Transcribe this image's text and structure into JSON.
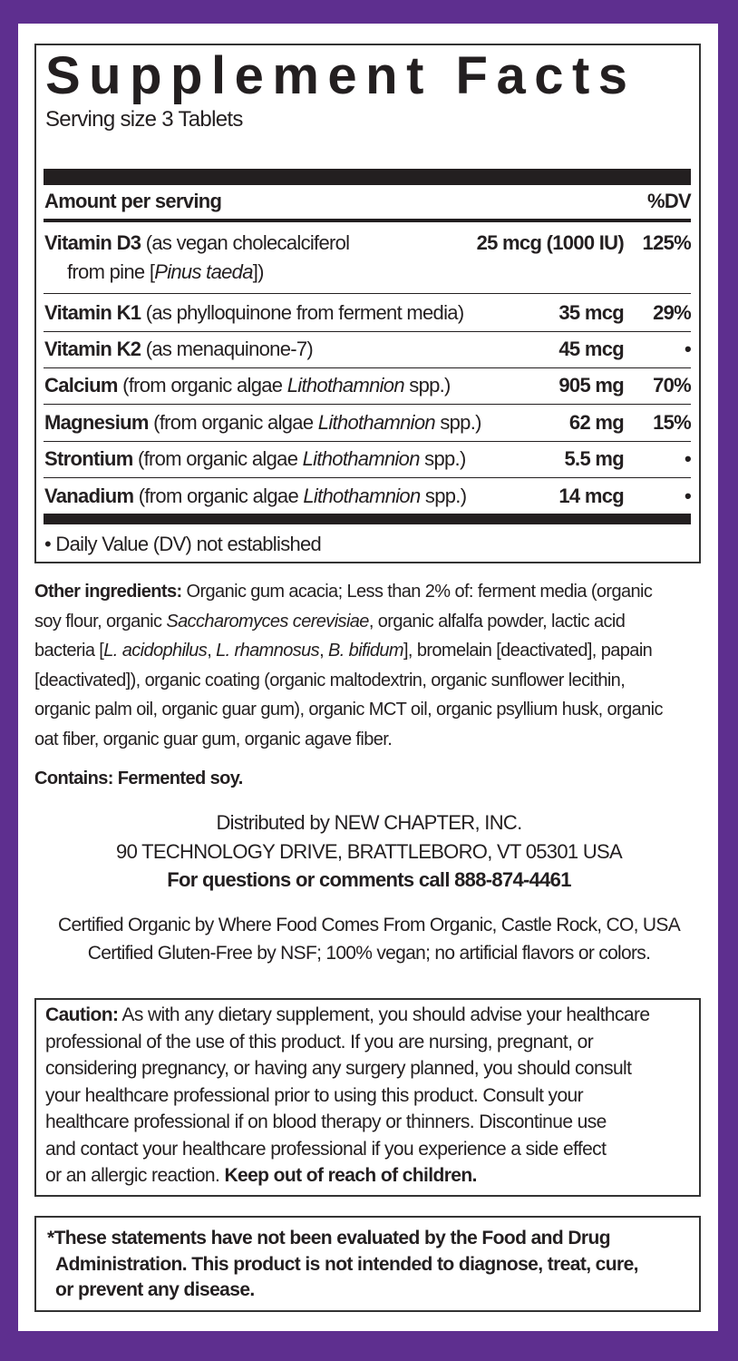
{
  "colors": {
    "border": "#5e2f8f",
    "text": "#231f20"
  },
  "facts": {
    "title": "Supplement Facts",
    "serving_size": "Serving size 3 Tablets",
    "header": {
      "amount": "Amount per serving",
      "dv": "%DV"
    },
    "nutrients": [
      {
        "name": "Vitamin D3",
        "pre": " (as vegan cholecalciferol",
        "italic": "",
        "post": "",
        "line2_pre": "from pine [",
        "line2_italic": "Pinus taeda",
        "line2_post": "])",
        "amount": "25 mcg (1000 IU)",
        "dv": "125%"
      },
      {
        "name": "Vitamin K1",
        "pre": " (as phylloquinone from ferment media)",
        "italic": "",
        "post": "",
        "amount": "35 mcg",
        "dv": "29%"
      },
      {
        "name": "Vitamin K2",
        "pre": " (as menaquinone-7)",
        "italic": "",
        "post": "",
        "amount": "45 mcg",
        "dv": "•"
      },
      {
        "name": "Calcium",
        "pre": " (from organic algae ",
        "italic": "Lithothamnion",
        "post": " spp.)",
        "amount": "905 mg",
        "dv": "70%"
      },
      {
        "name": "Magnesium",
        "pre": " (from organic algae ",
        "italic": "Lithothamnion",
        "post": " spp.)",
        "amount": "62 mg",
        "dv": "15%"
      },
      {
        "name": "Strontium",
        "pre": " (from organic algae ",
        "italic": "Lithothamnion",
        "post": " spp.)",
        "amount": "5.5 mg",
        "dv": "•"
      },
      {
        "name": "Vanadium",
        "pre": " (from organic algae ",
        "italic": "Lithothamnion",
        "post": " spp.)",
        "amount": "14 mcg",
        "dv": "•"
      }
    ],
    "footnote": "•  Daily Value (DV) not established"
  },
  "other_ingredients": {
    "label": "Other ingredients:",
    "l1": " Organic gum acacia; Less than 2% of: ferment media (organic",
    "l2a": "soy flour, organic ",
    "l2i": "Saccharomyces cerevisiae",
    "l2b": ", organic alfalfa powder, lactic acid",
    "l3a": "bacteria [",
    "l3i1": "L. acidophilus",
    "l3b": ", ",
    "l3i2": "L. rhamnosus",
    "l3c": ", ",
    "l3i3": "B. bifidum",
    "l3d": "], bromelain [deactivated], papain",
    "l4": "[deactivated]), organic coating (organic maltodextrin, organic sunflower lecithin,",
    "l5": "organic palm oil, organic guar gum), organic MCT oil, organic psyllium husk, organic",
    "l6": "oat fiber, organic guar gum, organic agave fiber."
  },
  "contains": "Contains: Fermented soy.",
  "distributor": {
    "line1": "Distributed by NEW CHAPTER, INC.",
    "line2": "90 TECHNOLOGY DRIVE, BRATTLEBORO, VT 05301 USA",
    "phone": "For questions or comments call 888-874-4461"
  },
  "certifications": {
    "line1": "Certified Organic by Where Food Comes From Organic, Castle Rock, CO, USA",
    "line2": "Certified Gluten-Free by NSF; 100% vegan; no artificial flavors or colors."
  },
  "caution": {
    "label": "Caution:",
    "l1": " As with any dietary supplement, you should advise your healthcare",
    "l2": "professional of the use of this product. If you are nursing, pregnant, or",
    "l3": "considering pregnancy, or having any surgery planned, you should consult",
    "l4": "your healthcare professional prior to using this product. Consult your",
    "l5": "healthcare professional if on blood therapy or thinners. Discontinue use",
    "l6": "and contact your healthcare professional if you experience a side effect",
    "l7a": "or an allergic reaction. ",
    "l7b": "Keep out of reach of children."
  },
  "disclaimer": {
    "l1": "*These statements have not been evaluated by the Food and Drug",
    "l2": "Administration. This product is not intended to diagnose, treat, cure,",
    "l3": "or prevent any disease."
  }
}
